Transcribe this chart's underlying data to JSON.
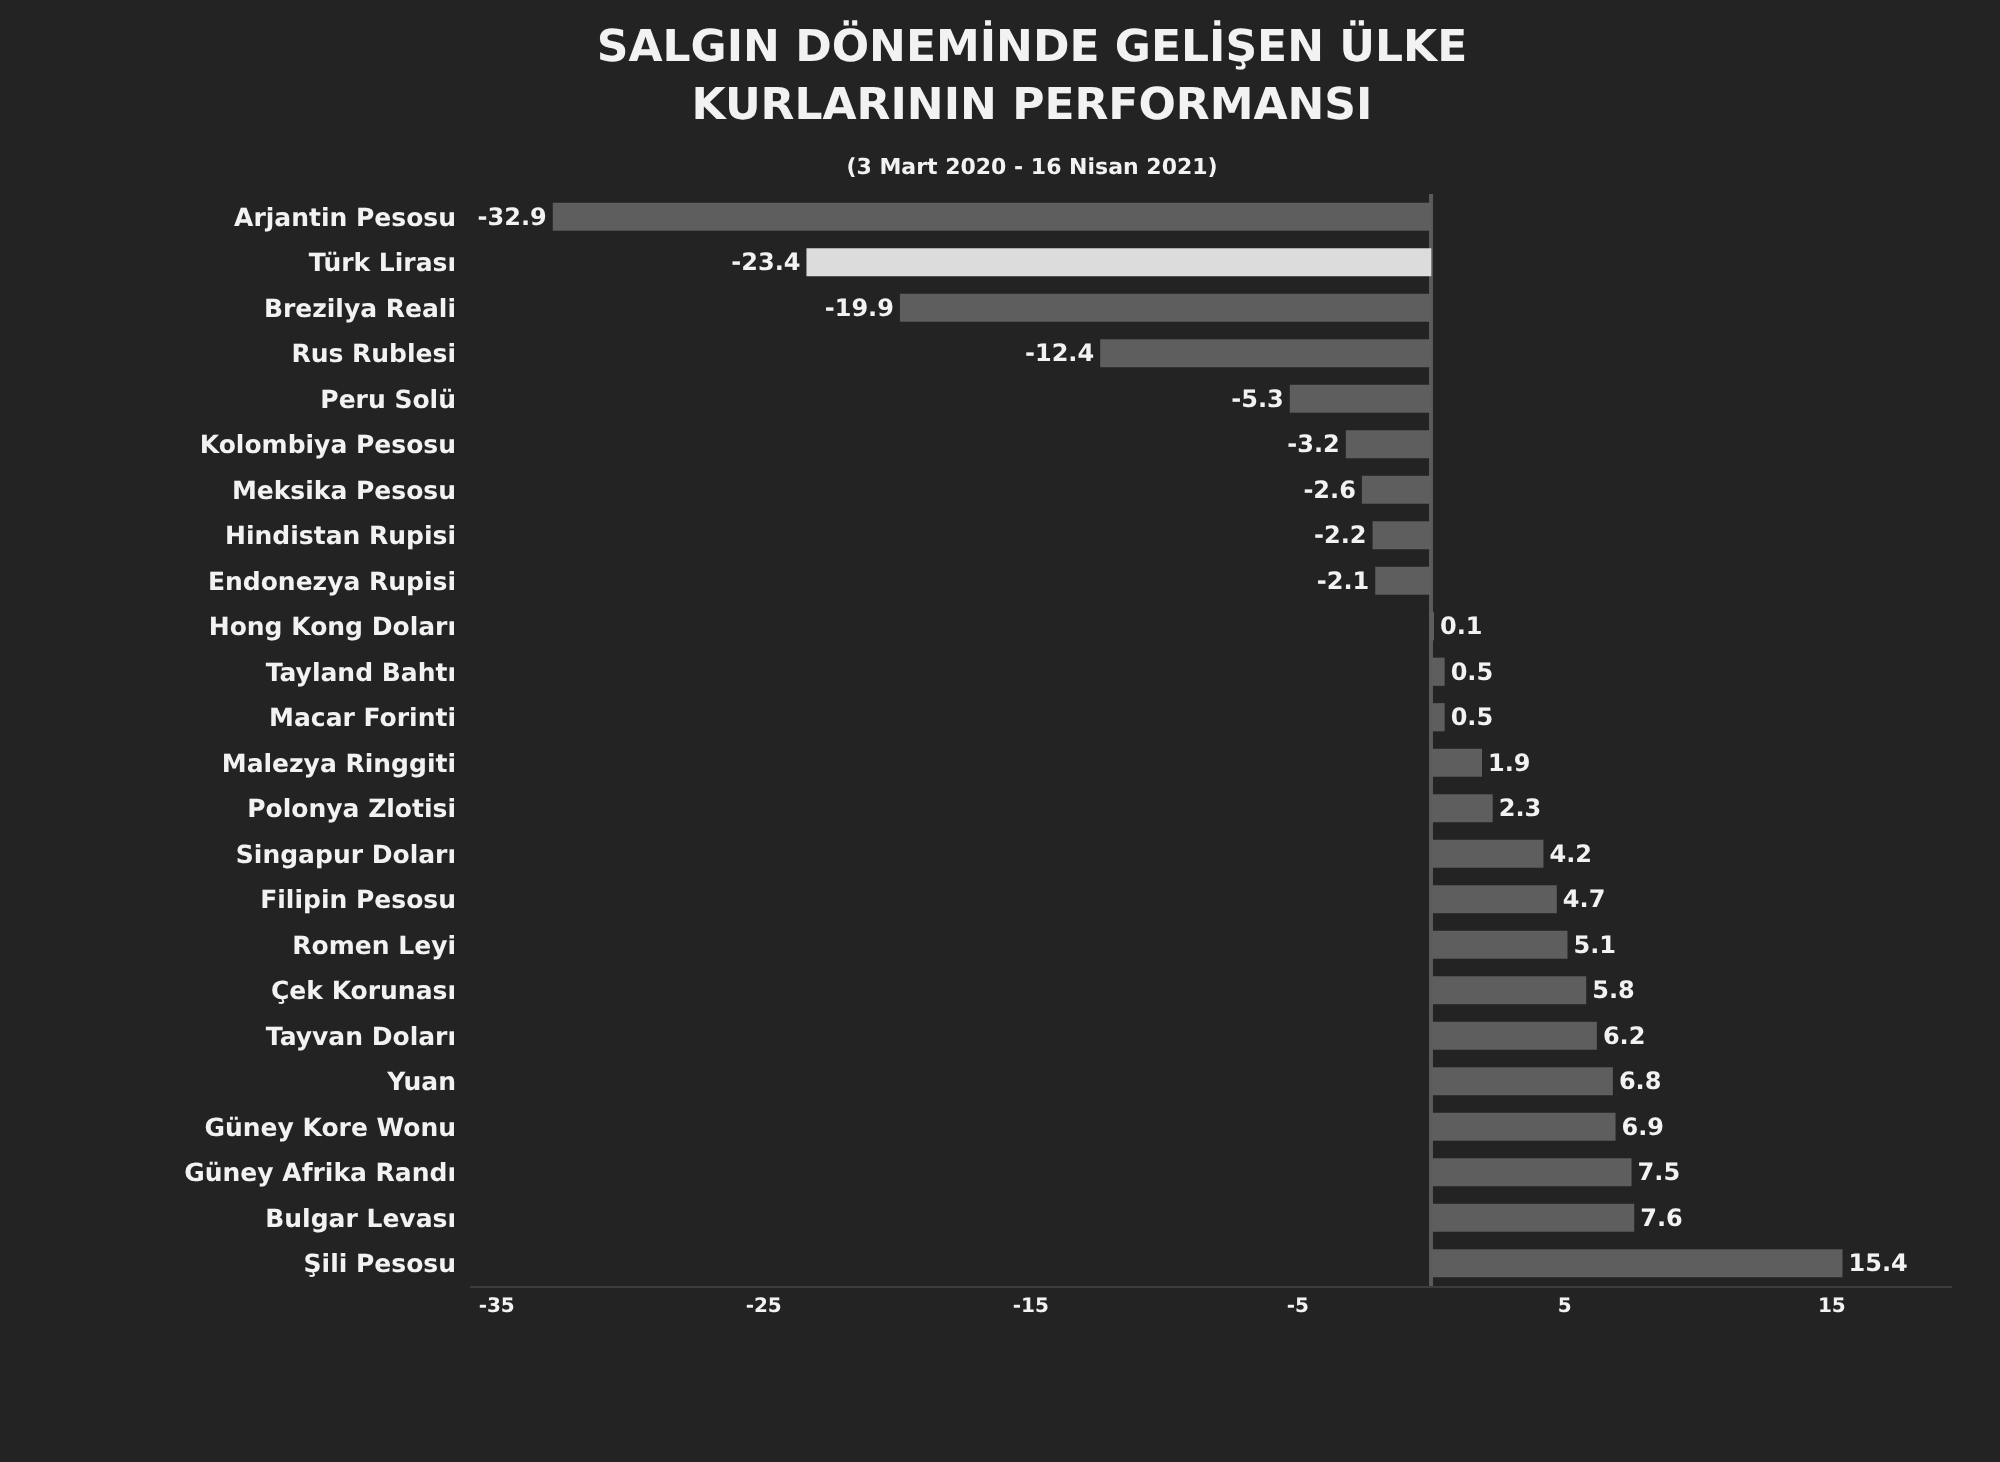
{
  "chart_data": {
    "type": "bar",
    "orientation": "horizontal",
    "title": "SALGIN DÖNEMİNDE GELİŞEN ÜLKE\nKURLARININ PERFORMANSI",
    "subtitle": "(3 Mart 2020 - 16 Nisan 2021)",
    "categories": [
      "Arjantin Pesosu",
      "Türk Lirası",
      "Brezilya Reali",
      "Rus Rublesi",
      "Peru Solü",
      "Kolombiya Pesosu",
      "Meksika Pesosu",
      "Hindistan Rupisi",
      "Endonezya Rupisi",
      "Hong Kong Doları",
      "Tayland Bahtı",
      "Macar Forinti",
      "Malezya Ringgiti",
      "Polonya Zlotisi",
      "Singapur Doları",
      "Filipin Pesosu",
      "Romen Leyi",
      "Çek Korunası",
      "Tayvan Doları",
      "Yuan",
      "Güney Kore Wonu",
      "Güney Afrika Randı",
      "Bulgar Levası",
      "Şili Pesosu"
    ],
    "values": [
      -32.9,
      -23.4,
      -19.9,
      -12.4,
      -5.3,
      -3.2,
      -2.6,
      -2.2,
      -2.1,
      0.1,
      0.5,
      0.5,
      1.9,
      2.3,
      4.2,
      4.7,
      5.1,
      5.8,
      6.2,
      6.8,
      6.9,
      7.5,
      7.6,
      15.4
    ],
    "colors": [
      "#5e5e5e",
      "#dcdcdc",
      "#5e5e5e",
      "#5e5e5e",
      "#5e5e5e",
      "#5e5e5e",
      "#5e5e5e",
      "#5e5e5e",
      "#5e5e5e",
      "#5e5e5e",
      "#5e5e5e",
      "#5e5e5e",
      "#5e5e5e",
      "#5e5e5e",
      "#5e5e5e",
      "#5e5e5e",
      "#5e5e5e",
      "#5e5e5e",
      "#5e5e5e",
      "#5e5e5e",
      "#5e5e5e",
      "#5e5e5e",
      "#5e5e5e",
      "#5e5e5e"
    ],
    "xlim": [
      -36,
      19.5
    ],
    "xticks": [
      -35,
      -25,
      -15,
      -5,
      5,
      15
    ],
    "data_labels": true
  }
}
